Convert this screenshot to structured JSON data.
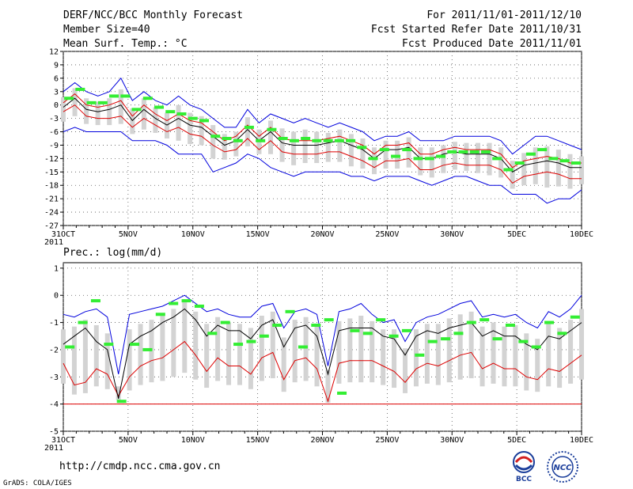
{
  "header": {
    "line1_left": "DERF/NCC/BCC Monthly Forecast",
    "line2_left": "Member Size=40",
    "line3_left": "Mean Surf. Temp.: °C",
    "line1_right": "For 2011/11/01-2011/12/10",
    "line2_right": "Fcst Started Refer Date 2011/10/31",
    "line3_right": "Fcst Produced Date 2011/11/01"
  },
  "footer": {
    "url": "http://cmdp.ncc.cma.gov.cn",
    "credit": "GrADS: COLA/IGES",
    "logo_left": "BCC",
    "logo_right": "NCC"
  },
  "colors": {
    "box": "#d3d3d3",
    "mean": "#000000",
    "spread": "#dd0000",
    "extreme": "#0000dd",
    "obs": "#33ee33"
  },
  "chart_data": [
    {
      "type": "line",
      "title": "Mean Surf. Temp.: °C",
      "x_labels": [
        "31OCT",
        "5NOV",
        "10NOV",
        "15NOV",
        "20NOV",
        "25NOV",
        "30NOV",
        "5DEC",
        "10DEC"
      ],
      "x_sublabel": "2011",
      "ylim": [
        -27,
        12
      ],
      "yticks": [
        12,
        9,
        6,
        3,
        0,
        -3,
        -6,
        -9,
        -12,
        -15,
        -18,
        -21,
        -24,
        -27
      ],
      "series": [
        {
          "name": "mean",
          "values": [
            -0.5,
            1.5,
            -1.0,
            -1.5,
            -1.0,
            0.0,
            -3.5,
            -1.0,
            -3.0,
            -4.5,
            -3.0,
            -4.5,
            -5.0,
            -7.0,
            -9.0,
            -8.0,
            -5.5,
            -8.0,
            -6.0,
            -8.5,
            -9.0,
            -9.0,
            -9.0,
            -8.5,
            -8.0,
            -9.0,
            -10.0,
            -12.0,
            -10.0,
            -10.0,
            -9.5,
            -12.0,
            -12.0,
            -11.0,
            -10.5,
            -11.0,
            -11.0,
            -11.0,
            -12.0,
            -15.0,
            -13.5,
            -13.0,
            -12.5,
            -13.0,
            -14.0,
            -14.0
          ]
        },
        {
          "name": "mean_plus_std",
          "values": [
            0.5,
            2.5,
            0.0,
            -0.5,
            0.0,
            1.0,
            -2.5,
            0.0,
            -2.0,
            -3.5,
            -2.0,
            -3.5,
            -4.0,
            -6.0,
            -8.0,
            -7.0,
            -4.5,
            -7.0,
            -5.0,
            -7.5,
            -8.0,
            -8.0,
            -8.0,
            -7.5,
            -7.0,
            -8.0,
            -9.0,
            -11.0,
            -9.0,
            -9.0,
            -8.5,
            -11.0,
            -11.0,
            -10.0,
            -9.5,
            -10.0,
            -10.0,
            -10.0,
            -11.0,
            -14.0,
            -12.5,
            -12.0,
            -11.5,
            -12.0,
            -13.0,
            -13.0
          ]
        },
        {
          "name": "mean_minus_std",
          "values": [
            -1.5,
            0.0,
            -2.5,
            -3.0,
            -3.0,
            -2.5,
            -5.0,
            -3.0,
            -4.5,
            -6.0,
            -5.0,
            -6.5,
            -7.0,
            -9.0,
            -10.5,
            -10.0,
            -7.5,
            -10.0,
            -8.0,
            -10.5,
            -11.0,
            -11.0,
            -11.0,
            -10.5,
            -10.5,
            -11.5,
            -12.5,
            -14.0,
            -12.5,
            -12.5,
            -12.0,
            -14.5,
            -14.5,
            -13.5,
            -13.0,
            -13.5,
            -13.5,
            -13.5,
            -14.5,
            -17.5,
            -16.0,
            -15.5,
            -15.0,
            -15.5,
            -16.5,
            -16.5
          ]
        },
        {
          "name": "max",
          "values": [
            3.0,
            5.0,
            3.0,
            2.0,
            3.0,
            6.0,
            1.0,
            3.0,
            1.0,
            0.0,
            2.0,
            0.0,
            -1.0,
            -3.0,
            -5.0,
            -5.0,
            -1.0,
            -4.0,
            -2.0,
            -3.0,
            -4.0,
            -3.0,
            -4.0,
            -5.0,
            -4.0,
            -5.0,
            -6.0,
            -8.0,
            -7.0,
            -7.0,
            -6.0,
            -8.0,
            -8.0,
            -8.0,
            -7.0,
            -7.0,
            -7.0,
            -7.0,
            -8.0,
            -11.0,
            -9.0,
            -7.0,
            -7.0,
            -8.0,
            -9.0,
            -10.0
          ]
        },
        {
          "name": "min",
          "values": [
            -6.0,
            -5.0,
            -6.0,
            -6.0,
            -6.0,
            -6.0,
            -8.0,
            -8.0,
            -8.0,
            -9.0,
            -11.0,
            -11.0,
            -11.0,
            -15.0,
            -14.0,
            -13.0,
            -11.0,
            -12.0,
            -14.0,
            -15.0,
            -16.0,
            -15.0,
            -15.0,
            -15.0,
            -15.0,
            -16.0,
            -16.0,
            -17.0,
            -16.0,
            -16.0,
            -16.0,
            -17.0,
            -18.0,
            -17.0,
            -16.0,
            -16.0,
            -17.0,
            -18.0,
            -18.0,
            -20.0,
            -20.0,
            -20.0,
            -22.0,
            -21.0,
            -21.0,
            -19.0
          ]
        },
        {
          "name": "observed",
          "values": [
            1.5,
            3.5,
            0.5,
            0.5,
            2.0,
            2.0,
            -1.0,
            1.5,
            -0.5,
            -1.5,
            -2.0,
            -3.0,
            -3.5,
            -7.0,
            -7.5,
            -8.0,
            -5.0,
            -8.0,
            -5.5,
            -7.5,
            -8.0,
            -7.5,
            -8.0,
            -8.0,
            -8.0,
            -8.0,
            -9.5,
            -12.0,
            -10.0,
            -11.5,
            -10.0,
            -12.0,
            -12.0,
            -11.5,
            -10.5,
            -10.5,
            -10.5,
            -10.5,
            -12.0,
            -14.5,
            -13.0,
            -11.0,
            -10.0,
            -12.0,
            -12.5,
            -13.0
          ]
        }
      ]
    },
    {
      "type": "line",
      "title": "Prec.: log(mm/d)",
      "x_labels": [
        "31OCT",
        "5NOV",
        "10NOV",
        "15NOV",
        "20NOV",
        "25NOV",
        "30NOV",
        "5DEC",
        "10DEC"
      ],
      "x_sublabel": "2011",
      "ylim": [
        -5,
        1.2
      ],
      "yticks": [
        1,
        0,
        -1,
        -2,
        -3,
        -4,
        -5
      ],
      "series": [
        {
          "name": "mean",
          "values": [
            -1.8,
            -1.5,
            -1.2,
            -1.7,
            -2.0,
            -3.8,
            -1.8,
            -1.5,
            -1.3,
            -1.0,
            -0.8,
            -0.5,
            -0.9,
            -1.5,
            -1.1,
            -1.3,
            -1.3,
            -1.6,
            -1.1,
            -0.9,
            -1.9,
            -1.2,
            -1.1,
            -1.5,
            -2.9,
            -1.3,
            -1.2,
            -1.2,
            -1.2,
            -1.5,
            -1.6,
            -2.2,
            -1.5,
            -1.3,
            -1.4,
            -1.2,
            -1.1,
            -1.0,
            -1.5,
            -1.3,
            -1.5,
            -1.5,
            -1.8,
            -2.0,
            -1.5,
            -1.6,
            -1.3,
            -1.0
          ]
        },
        {
          "name": "mean_minus_std",
          "values": [
            -2.5,
            -3.3,
            -3.2,
            -2.7,
            -2.9,
            -3.7,
            -3.0,
            -2.6,
            -2.4,
            -2.3,
            -2.0,
            -1.7,
            -2.2,
            -2.8,
            -2.3,
            -2.6,
            -2.6,
            -2.9,
            -2.3,
            -2.1,
            -3.1,
            -2.4,
            -2.3,
            -2.7,
            -3.9,
            -2.5,
            -2.4,
            -2.4,
            -2.4,
            -2.6,
            -2.8,
            -3.2,
            -2.7,
            -2.5,
            -2.6,
            -2.4,
            -2.2,
            -2.1,
            -2.7,
            -2.5,
            -2.7,
            -2.7,
            -3.0,
            -3.1,
            -2.7,
            -2.8,
            -2.5,
            -2.2
          ]
        },
        {
          "name": "max",
          "values": [
            -0.7,
            -0.8,
            -0.6,
            -0.5,
            -0.8,
            -2.9,
            -0.7,
            -0.6,
            -0.5,
            -0.4,
            -0.2,
            0.0,
            -0.3,
            -0.6,
            -0.5,
            -0.7,
            -0.8,
            -0.8,
            -0.4,
            -0.3,
            -1.2,
            -0.6,
            -0.5,
            -0.7,
            -2.6,
            -0.6,
            -0.5,
            -0.3,
            -0.7,
            -1.0,
            -0.9,
            -1.7,
            -1.0,
            -0.8,
            -0.7,
            -0.5,
            -0.3,
            -0.2,
            -0.8,
            -0.7,
            -0.8,
            -0.7,
            -1.0,
            -1.2,
            -0.6,
            -0.8,
            -0.5,
            0.0
          ]
        },
        {
          "name": "min",
          "values": [
            -4.0,
            -4.0,
            -4.0,
            -4.0,
            -4.0,
            -4.0,
            -4.0,
            -4.0,
            -4.0,
            -4.0,
            -4.0,
            -4.0,
            -4.0,
            -4.0,
            -4.0,
            -4.0,
            -4.0,
            -4.0,
            -4.0,
            -4.0,
            -4.0,
            -4.0,
            -4.0,
            -4.0,
            -4.0,
            -4.0,
            -4.0,
            -4.0,
            -4.0,
            -4.0,
            -4.0,
            -4.0,
            -4.0,
            -4.0,
            -4.0,
            -4.0,
            -4.0,
            -4.0,
            -4.0,
            -4.0,
            -4.0,
            -4.0,
            -4.0,
            -4.0,
            -4.0,
            -4.0,
            -4.0,
            -4.0
          ]
        },
        {
          "name": "observed",
          "values": [
            -1.9,
            -1.0,
            -0.2,
            -1.8,
            -3.9,
            -1.8,
            -2.0,
            -0.7,
            -0.3,
            -0.2,
            -0.4,
            -1.4,
            -1.0,
            -1.8,
            -1.7,
            -1.5,
            -1.1,
            -0.6,
            -1.9,
            -1.1,
            -0.9,
            -3.6,
            -1.3,
            -1.4,
            -0.9,
            -1.5,
            -1.3,
            -2.2,
            -1.7,
            -1.6,
            -1.4,
            -1.0,
            -0.9,
            -1.6,
            -1.1,
            -1.7,
            -1.9,
            -1.0,
            -1.4,
            -0.8
          ]
        }
      ]
    }
  ]
}
